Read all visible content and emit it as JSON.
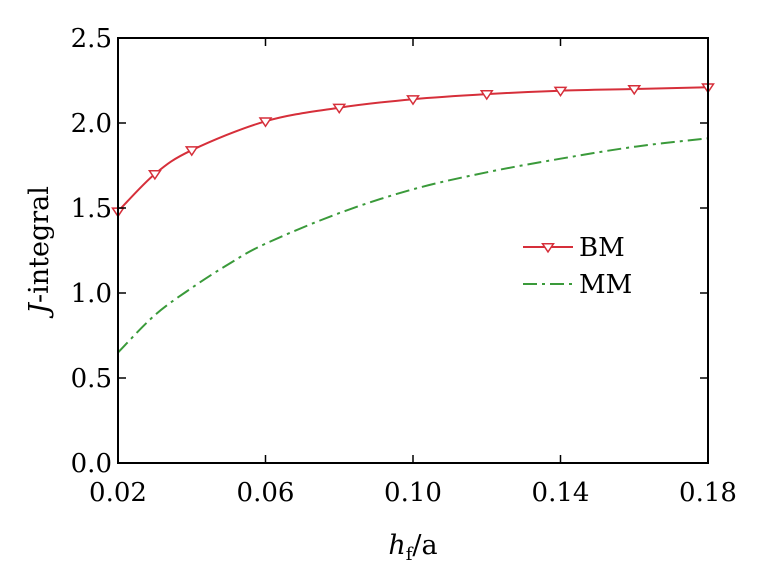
{
  "chart_data": {
    "type": "line",
    "xlabel": "h_f / a",
    "xlabel_parts": {
      "var": "h",
      "sub": "f",
      "rest": "/a"
    },
    "ylabel": "J-integral",
    "ylabel_parts": {
      "var": "J",
      "rest": "-integral"
    },
    "xlim": [
      0.02,
      0.18
    ],
    "ylim": [
      0.0,
      2.5
    ],
    "x_ticks": [
      0.02,
      0.06,
      0.1,
      0.14,
      0.18
    ],
    "x_tick_labels": [
      "0.02",
      "0.06",
      "0.10",
      "0.14",
      "0.18"
    ],
    "y_ticks": [
      0.0,
      0.5,
      1.0,
      1.5,
      2.0,
      2.5
    ],
    "y_tick_labels": [
      "0.0",
      "0.5",
      "1.0",
      "1.5",
      "2.0",
      "2.5"
    ],
    "grid": false,
    "legend_position": "right-center",
    "series": [
      {
        "name": "BM",
        "color": "#d62f3a",
        "line_style": "solid",
        "marker": "triangle-down-open",
        "x": [
          0.02,
          0.03,
          0.04,
          0.06,
          0.08,
          0.1,
          0.12,
          0.14,
          0.16,
          0.18
        ],
        "y": [
          1.48,
          1.7,
          1.84,
          2.01,
          2.09,
          2.14,
          2.17,
          2.19,
          2.2,
          2.21
        ]
      },
      {
        "name": "MM",
        "color": "#3a9a3a",
        "line_style": "dash-dot",
        "marker": "none",
        "x": [
          0.02,
          0.03,
          0.04,
          0.05,
          0.06,
          0.08,
          0.1,
          0.12,
          0.14,
          0.16,
          0.18
        ],
        "y": [
          0.65,
          0.87,
          1.03,
          1.17,
          1.29,
          1.47,
          1.61,
          1.71,
          1.79,
          1.86,
          1.91
        ]
      }
    ]
  }
}
